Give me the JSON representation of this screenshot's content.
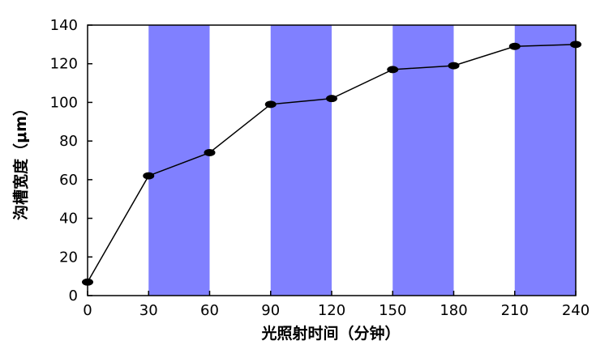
{
  "chart_data": {
    "type": "line",
    "x_label": "光照射时间（分钟）",
    "y_label": "沟槽宽度（μm）",
    "x": [
      0,
      30,
      60,
      90,
      120,
      150,
      180,
      210,
      240
    ],
    "series": [
      {
        "color": "#000000",
        "values": [
          7,
          62,
          74,
          99,
          102,
          117,
          119,
          129,
          130
        ]
      }
    ],
    "bands": [
      [
        30,
        60
      ],
      [
        90,
        120
      ],
      [
        150,
        180
      ],
      [
        210,
        240
      ]
    ],
    "band_color": "#8080ff",
    "xlim": [
      0,
      240
    ],
    "xticks": [
      0,
      30,
      60,
      90,
      120,
      150,
      180,
      210,
      240
    ],
    "ylim": [
      0,
      140
    ],
    "yticks": [
      0,
      20,
      40,
      60,
      80,
      100,
      120,
      140
    ]
  }
}
